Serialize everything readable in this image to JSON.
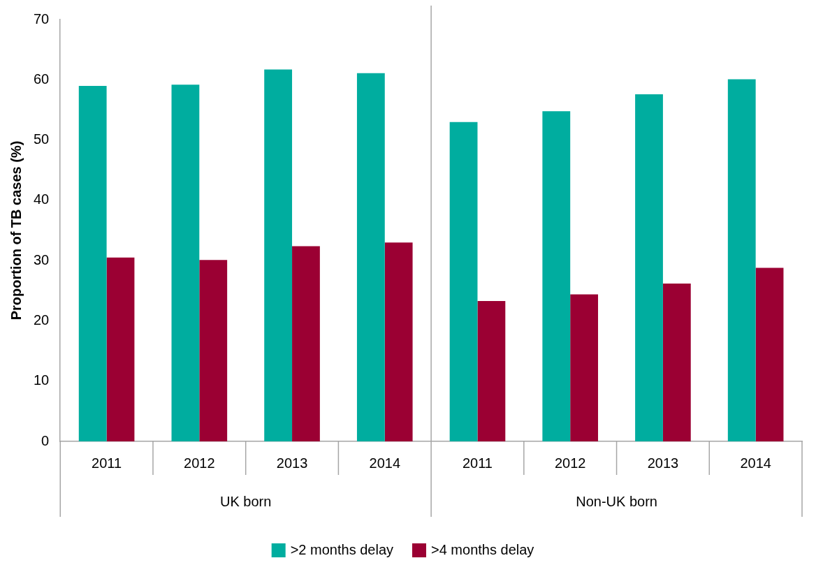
{
  "chart_data": {
    "type": "bar",
    "ylabel": "Proportion of TB cases (%)",
    "categories": [
      "2011",
      "2012",
      "2013",
      "2014",
      "2011",
      "2012",
      "2013",
      "2014"
    ],
    "series": [
      {
        "name": ">2 months delay",
        "color": "#00ad9f",
        "values": [
          59.0,
          59.2,
          61.7,
          61.1,
          53.0,
          54.8,
          57.6,
          60.1
        ]
      },
      {
        "name": ">4 months delay",
        "color": "#9b0033",
        "values": [
          30.5,
          30.1,
          32.4,
          33.0,
          23.3,
          24.4,
          26.2,
          28.8
        ]
      }
    ],
    "annotations": [
      "UK born",
      "Non-UK born"
    ],
    "ylim": [
      0,
      70
    ],
    "yticks": [
      0,
      10,
      20,
      30,
      40,
      50,
      60,
      70
    ],
    "grid": false,
    "legend": "bottom"
  }
}
